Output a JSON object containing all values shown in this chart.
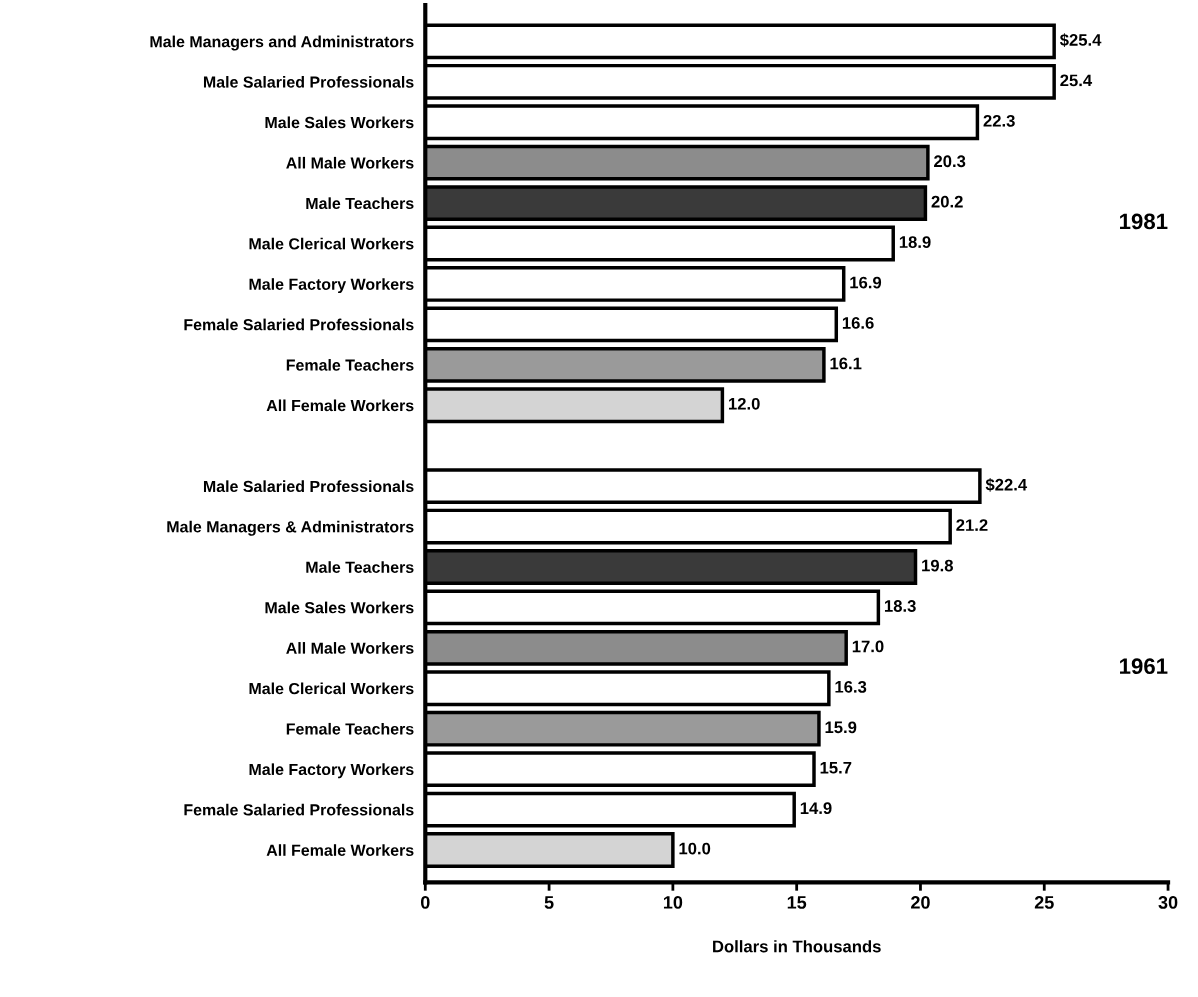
{
  "chart_data": {
    "type": "bar",
    "orientation": "horizontal",
    "xlabel": "Dollars in Thousands",
    "categories": [
      "Male Managers and Administrators",
      "Male Salaried Professionals",
      "Male Sales Workers",
      "All Male Workers",
      "Male Teachers",
      "Male Clerical Workers",
      "Male Factory Workers",
      "Female Salaried Professionals",
      "Female Teachers",
      "All Female Workers",
      null,
      "Male Salaried Professionals",
      "Male Managers & Administrators",
      "Male Teachers",
      "Male Sales Workers",
      "All Male Workers",
      "Male Clerical Workers",
      "Female Teachers",
      "Male Factory Workers",
      "Female Salaried Professionals",
      "All Female Workers"
    ],
    "values": [
      25.4,
      25.4,
      22.3,
      20.3,
      20.2,
      18.9,
      16.9,
      16.6,
      16.1,
      12.0,
      null,
      22.4,
      21.2,
      19.8,
      18.3,
      17.0,
      16.3,
      15.9,
      15.7,
      14.9,
      10.0
    ],
    "value_labels": [
      "$25.4",
      "25.4",
      "22.3",
      "20.3",
      "20.2",
      "18.9",
      "16.9",
      "16.6",
      "16.1",
      "12.0",
      null,
      "$22.4",
      "21.2",
      "19.8",
      "18.3",
      "17.0",
      "16.3",
      "15.9",
      "15.7",
      "14.9",
      "10.0"
    ],
    "colors": [
      "#ffffff",
      "#ffffff",
      "#ffffff",
      "#8c8c8c",
      "#3a3a3a",
      "#ffffff",
      "#ffffff",
      "#ffffff",
      "#9a9a9a",
      "#d4d4d4",
      null,
      "#ffffff",
      "#ffffff",
      "#3a3a3a",
      "#ffffff",
      "#8c8c8c",
      "#ffffff",
      "#9a9a9a",
      "#ffffff",
      "#ffffff",
      "#d4d4d4"
    ],
    "xlim": [
      0,
      30
    ],
    "xticks": [
      0,
      5,
      10,
      15,
      20,
      25,
      30
    ],
    "annotations": [
      "1981",
      "1961"
    ],
    "grid": false
  }
}
